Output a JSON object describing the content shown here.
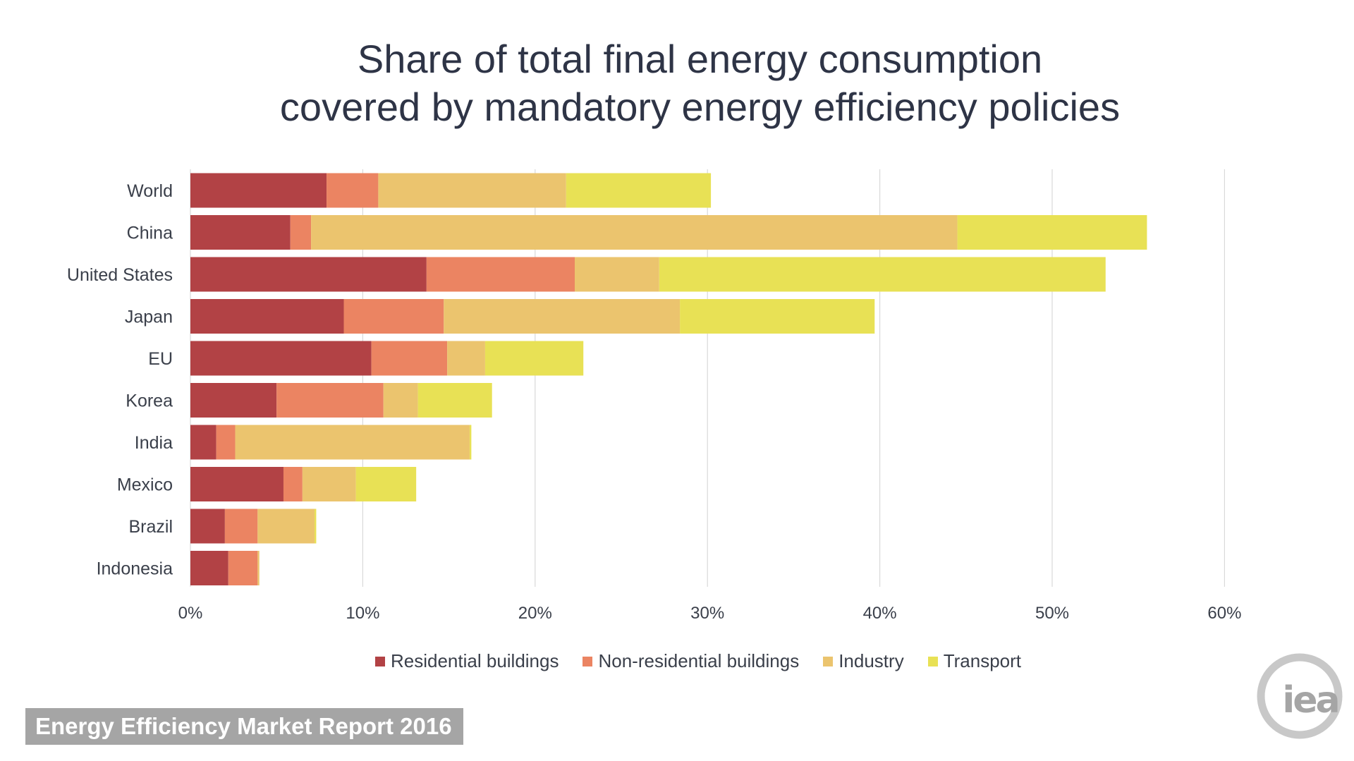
{
  "header": {
    "title_line1": "Share of total final energy consumption",
    "title_line2": "covered by mandatory energy efficiency policies"
  },
  "chart_data": {
    "type": "bar",
    "orientation": "horizontal",
    "stacked": true,
    "title": "Share of total final energy consumption covered by mandatory energy efficiency policies",
    "xlabel": "",
    "ylabel": "",
    "xlim": [
      0,
      60
    ],
    "x_ticks": [
      0,
      10,
      20,
      30,
      40,
      50,
      60
    ],
    "x_tick_labels": [
      "0%",
      "10%",
      "20%",
      "30%",
      "40%",
      "50%",
      "60%"
    ],
    "grid": "vertical",
    "legend_position": "bottom",
    "categories": [
      "World",
      "China",
      "United States",
      "Japan",
      "EU",
      "Korea",
      "India",
      "Mexico",
      "Brazil",
      "Indonesia"
    ],
    "series": [
      {
        "name": "Residential buildings",
        "color": "#b24245",
        "values": [
          7.9,
          5.8,
          13.7,
          8.9,
          10.5,
          5.0,
          1.5,
          5.4,
          2.0,
          2.2
        ]
      },
      {
        "name": "Non-residential buildings",
        "color": "#eb8462",
        "values": [
          3.0,
          1.2,
          8.6,
          5.8,
          4.4,
          6.2,
          1.1,
          1.1,
          1.9,
          1.7
        ]
      },
      {
        "name": "Industry",
        "color": "#ebc46e",
        "values": [
          10.9,
          37.5,
          4.9,
          13.7,
          2.2,
          2.0,
          13.6,
          3.1,
          3.3,
          0.1
        ]
      },
      {
        "name": "Transport",
        "color": "#e8e155",
        "values": [
          8.4,
          11.0,
          25.9,
          11.3,
          5.7,
          4.3,
          0.1,
          3.5,
          0.1,
          0.0
        ]
      }
    ]
  },
  "footer": {
    "report_label": "Energy Efficiency Market Report 2016",
    "logo_text": "iea",
    "logo_ring_color": "#c8c8c8",
    "logo_text_color": "#a5a5a5"
  },
  "colors": {
    "title": "#2e3446",
    "axis_text": "#3a3f4a",
    "grid": "#d9d9d9",
    "banner_bg": "#a5a5a5"
  }
}
